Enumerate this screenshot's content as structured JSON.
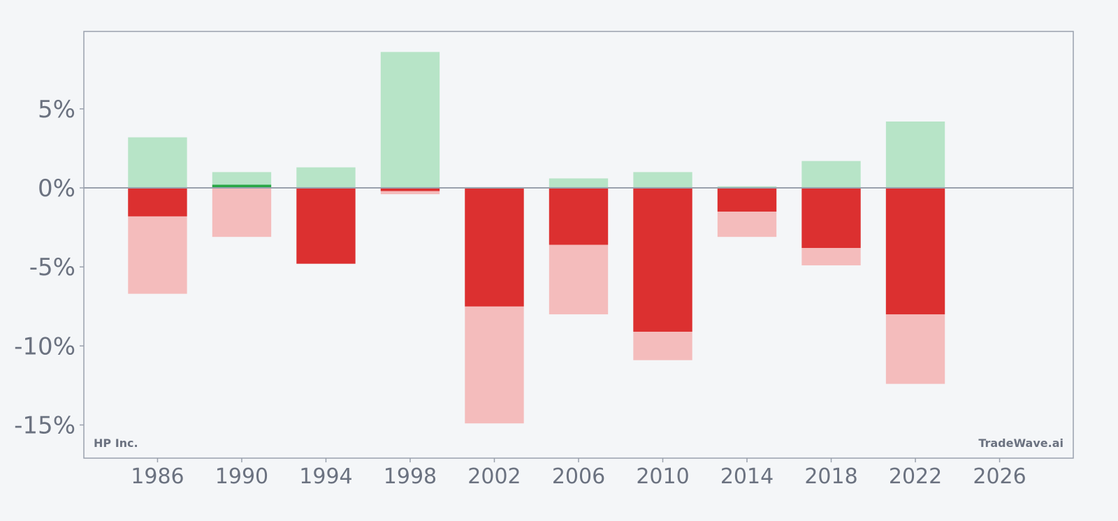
{
  "chart_data": {
    "type": "bar",
    "x_ticks": [
      "1986",
      "1990",
      "1994",
      "1998",
      "2002",
      "2006",
      "2010",
      "2014",
      "2018",
      "2022",
      "2026"
    ],
    "y_ticks": [
      "5%",
      "0%",
      "-5%",
      "-10%",
      "-15%"
    ],
    "y_tick_values": [
      5,
      0,
      -5,
      -10,
      -15
    ],
    "ylim": [
      -17.1,
      9.9
    ],
    "xlim": [
      1982.5,
      2029.5
    ],
    "grid": false,
    "legend": "none",
    "series": [
      {
        "values_description_key": "year_range_positive"
      },
      {
        "values_description_key": "year_range_negative"
      },
      {
        "values_description_key": "annual_return"
      }
    ],
    "years": [
      1986,
      1990,
      1994,
      1998,
      2002,
      2006,
      2010,
      2014,
      2018,
      2022
    ],
    "range_high": [
      3.2,
      1.0,
      1.3,
      8.6,
      0.05,
      0.6,
      1.0,
      0.1,
      1.7,
      4.2
    ],
    "range_low": [
      -6.7,
      -3.1,
      0,
      -0.4,
      -14.9,
      -8.0,
      -10.9,
      -3.1,
      -4.9,
      -12.4
    ],
    "annual_value": [
      -1.8,
      0.2,
      -4.8,
      -0.2,
      -7.5,
      -3.6,
      -9.1,
      -1.5,
      -3.8,
      -8.0
    ],
    "colors": {
      "positive_range": "#b7e4c7",
      "negative_range": "#f4bcbc",
      "positive_value": "#28a745",
      "negative_value": "#dc3030",
      "axis": "#9aa1ad",
      "background": "#f4f6f8"
    },
    "watermark_left": "HP Inc.",
    "watermark_right": "TradeWave.ai"
  }
}
